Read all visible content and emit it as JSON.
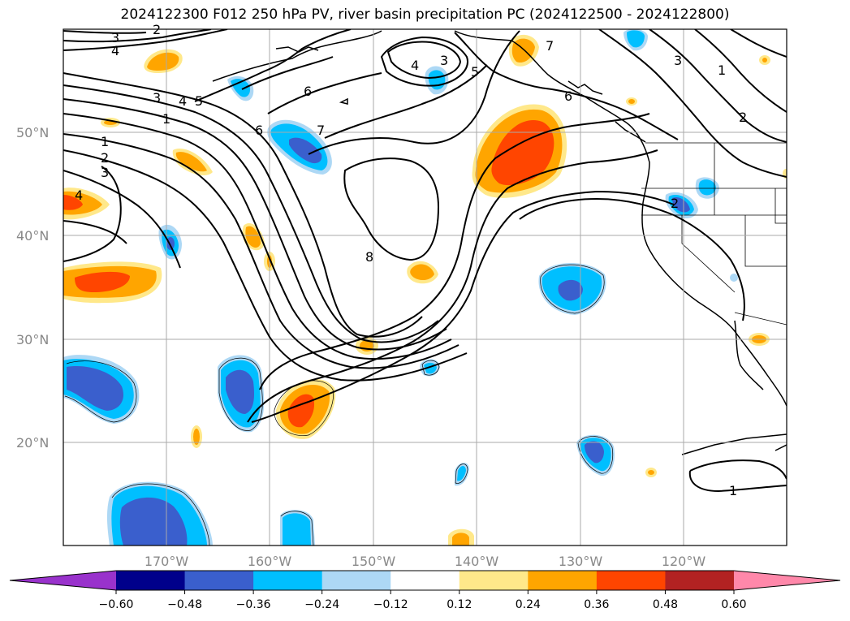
{
  "title": "2024122300 F012 250 hPa PV, river basin precipitation PC (2024122500 - 2024122800)",
  "map": {
    "lat_labels": [
      "50°N",
      "40°N",
      "30°N",
      "20°N"
    ],
    "lon_labels": [
      "170°W",
      "160°W",
      "150°W",
      "140°W",
      "130°W",
      "120°W"
    ],
    "contour_labels": [
      "3",
      "2",
      "4",
      "3",
      "4",
      "5",
      "1",
      "1",
      "2",
      "3",
      "4",
      "6",
      "6",
      "7",
      "4",
      "3",
      "5",
      "7",
      "6",
      "8",
      "2",
      "3",
      "1",
      "2",
      "1"
    ]
  },
  "colorbar": {
    "ticks": [
      "−0.60",
      "−0.48",
      "−0.36",
      "−0.24",
      "−0.12",
      "0.12",
      "0.24",
      "0.36",
      "0.48",
      "0.60"
    ],
    "colors": [
      "#9932cc",
      "#00008b",
      "#3a5fcd",
      "#00bfff",
      "#add8f5",
      "#ffffff",
      "#ffe88a",
      "#ffa500",
      "#ff4500",
      "#b22222",
      "#ff88aa"
    ]
  }
}
